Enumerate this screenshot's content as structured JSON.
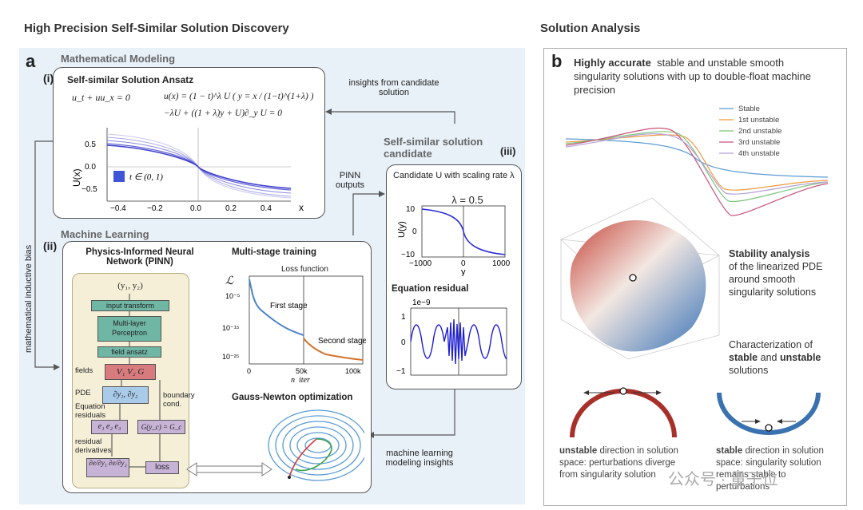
{
  "left_title": "High Precision Self-Similar Solution Discovery",
  "right_title": "Solution Analysis",
  "panel_a": {
    "label": "a",
    "math_modeling": {
      "title": "Mathematical Modeling",
      "index": "(i)",
      "box_title": "Self-similar Solution Ansatz",
      "eq1": "u_t + uu_x = 0",
      "eq2": "u(x) = (1 − t)^λ U ( y = x / (1−t)^(1+λ) )",
      "eq3": "−λU + ((1 + λ)y + U)∂_y U = 0",
      "plot": {
        "ylabel": "U(x)",
        "xlabel": "x",
        "legend": "t ∈ (0, 1)",
        "yticks": [
          "0.5",
          "0.0",
          "−0.5"
        ],
        "xticks": [
          "−0.4",
          "−0.2",
          "0.0",
          "0.2",
          "0.4"
        ]
      }
    },
    "insights_label": "insights from candidate solution",
    "side_label": "mathematical inductive bias",
    "pinn_outputs_label": "PINN outputs",
    "ml_insights_label": "machine learning modeling insights",
    "candidate": {
      "title": "Self-similar solution candidate",
      "index": "(iii)",
      "box_title": "Candidate U with scaling rate λ",
      "lambda_label": "λ = 0.5",
      "plot_ylabel": "U(y)",
      "plot_xlabel": "y",
      "plot_yticks": [
        "10",
        "0",
        "−10"
      ],
      "plot_xticks": [
        "−1000",
        "0",
        "1000"
      ],
      "residual_title": "Equation residual",
      "residual_scale": "1e−9",
      "residual_yticks": [
        "1",
        "0",
        "−1"
      ]
    },
    "machine_learning": {
      "title": "Machine Learning",
      "index": "(ii)",
      "pinn_title": "Physics-Informed Neural Network (PINN)",
      "pinn_input": "(y₁, y₂)",
      "input_transform": "input transform",
      "mlp": "Multi-layer Perceptron",
      "field_ansatz": "field ansatz",
      "fields_label": "fields",
      "fields_value": "V₁  V₂  G",
      "pde_label": "PDE",
      "pde_value": "∂y₁, ∂y₂",
      "eq_residuals_label": "Equation residuals",
      "residuals_value": "e₁ e₂ e₃",
      "boundary_label": "boundary cond.",
      "boundary_value": "G(y_c) = G_c",
      "residual_derivs_label": "residual derivatives",
      "deriv_value": "∂e/∂y₁  ∂e/∂y₂",
      "loss": "loss",
      "multistage_title": "Multi-stage training",
      "loss_function": "Loss function",
      "loss_symbol": "ℒ",
      "first_stage": "First stage",
      "second_stage": "Second stage",
      "loss_yticks": [
        "10⁻⁵",
        "10⁻¹⁵",
        "10⁻²⁵"
      ],
      "loss_xticks": [
        "0",
        "50k",
        "100k"
      ],
      "loss_xlabel": "n_iter",
      "gn_title": "Gauss-Newton optimization"
    }
  },
  "panel_b": {
    "label": "b",
    "accurate_bold": "Highly accurate",
    "accurate_text": "stable and unstable smooth singularity solutions with up to double-float machine precision",
    "legend": [
      {
        "name": "Stable",
        "color": "#5b9bd5"
      },
      {
        "name": "1st unstable",
        "color": "#ed9b42"
      },
      {
        "name": "2nd unstable",
        "color": "#7cc47a"
      },
      {
        "name": "3rd unstable",
        "color": "#c9507a"
      },
      {
        "name": "4th unstable",
        "color": "#b3a1d6"
      }
    ],
    "stability_bold": "Stability analysis",
    "stability_text": "of the linearized PDE around smooth singularity solutions",
    "char_text1": "Characterization of",
    "char_bold1": "stable",
    "char_text2": "and",
    "char_bold2": "unstable",
    "char_text3": "solutions",
    "unstable_bold": "unstable",
    "unstable_text": "direction in solution space: perturbations diverge from singularity solution",
    "stable_bold": "stable",
    "stable_text": "direction in solution space: singularity solution remains stable to perturbations"
  },
  "watermark": "公众号 · 量子位"
}
